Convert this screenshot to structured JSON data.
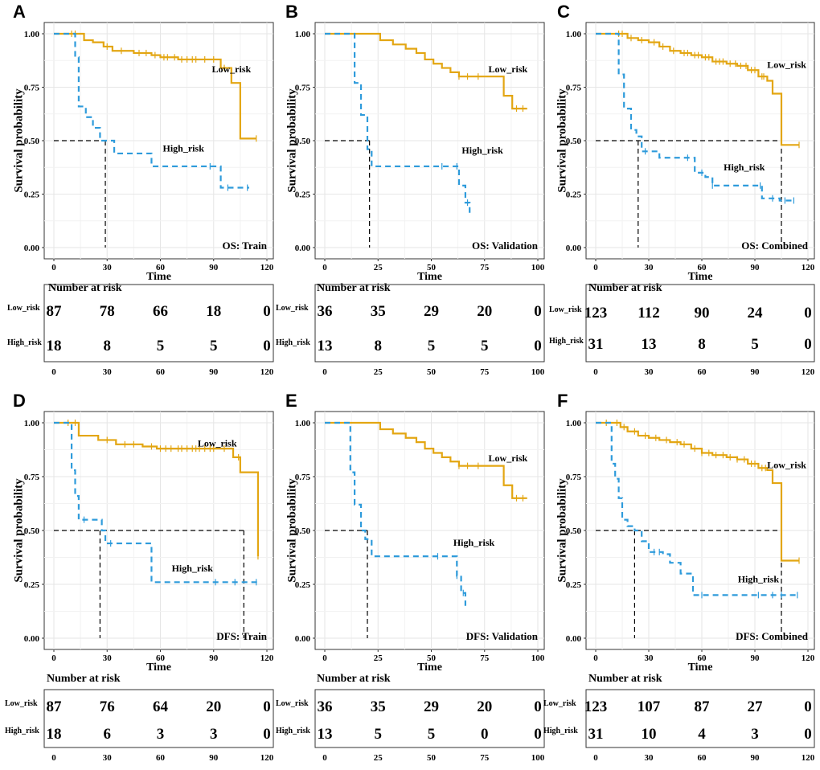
{
  "colors": {
    "low_risk": "#E3A612",
    "high_risk": "#2E9BDB",
    "median_line": "#000000",
    "grid": "#E6E6E6",
    "frame": "#333333"
  },
  "chart_data": [
    {
      "panel": "A",
      "type": "line",
      "annotation": "OS: Train",
      "xlabel": "Time",
      "ylabel": "Survival probability",
      "xlim": [
        0,
        120
      ],
      "ylim": [
        0,
        1
      ],
      "xticks": [
        "0",
        "30",
        "60",
        "90",
        "120"
      ],
      "yticks": [
        "0.00",
        "0.25",
        "0.50",
        "0.75",
        "1.00"
      ],
      "series": [
        {
          "name": "Low_risk",
          "label_at": [
            100,
            0.82
          ],
          "x": [
            0,
            14,
            17,
            22,
            28,
            33,
            45,
            55,
            60,
            70,
            88,
            94,
            100,
            105,
            114
          ],
          "y": [
            1,
            1,
            0.97,
            0.96,
            0.94,
            0.92,
            0.91,
            0.9,
            0.89,
            0.88,
            0.88,
            0.84,
            0.77,
            0.51,
            0.51
          ],
          "censor_x": [
            10,
            12,
            30,
            38,
            48,
            52,
            57,
            62,
            64,
            68,
            72,
            75,
            78,
            80,
            85,
            90,
            96,
            114
          ]
        },
        {
          "name": "High_risk",
          "label_at": [
            73,
            0.45
          ],
          "x": [
            0,
            10,
            12,
            14,
            18,
            22,
            26,
            30,
            34,
            43,
            55,
            91,
            94,
            110
          ],
          "y": [
            1,
            1,
            0.89,
            0.66,
            0.61,
            0.56,
            0.5,
            0.5,
            0.44,
            0.44,
            0.38,
            0.38,
            0.28,
            0.28
          ],
          "censor_x": [
            88,
            98,
            109
          ]
        }
      ],
      "median_x": [
        29
      ],
      "risk_table": {
        "title": "Number at risk",
        "ticks": [
          "0",
          "30",
          "60",
          "90",
          "120"
        ],
        "rows": [
          {
            "label": "Low_risk",
            "values": [
              "87",
              "78",
              "66",
              "18",
              "0"
            ]
          },
          {
            "label": "High_risk",
            "values": [
              "18",
              "8",
              "5",
              "5",
              "0"
            ]
          }
        ]
      }
    },
    {
      "panel": "B",
      "type": "line",
      "annotation": "OS: Validation",
      "xlabel": "Time",
      "ylabel": "Survival probability",
      "xlim": [
        0,
        100
      ],
      "ylim": [
        0,
        1
      ],
      "xticks": [
        "0",
        "25",
        "50",
        "75",
        "100"
      ],
      "yticks": [
        "0.00",
        "0.25",
        "0.50",
        "0.75",
        "1.00"
      ],
      "series": [
        {
          "name": "Low_risk",
          "label_at": [
            86,
            0.82
          ],
          "x": [
            0,
            20,
            26,
            32,
            38,
            43,
            47,
            51,
            55,
            59,
            63,
            70,
            76,
            84,
            88,
            95
          ],
          "y": [
            1,
            1,
            0.97,
            0.95,
            0.93,
            0.91,
            0.88,
            0.86,
            0.84,
            0.82,
            0.8,
            0.8,
            0.8,
            0.71,
            0.65,
            0.65
          ],
          "censor_x": [
            63,
            67,
            72,
            90,
            93
          ]
        },
        {
          "name": "High_risk",
          "label_at": [
            74,
            0.44
          ],
          "x": [
            0,
            11,
            14,
            17,
            20,
            22,
            24,
            58,
            63,
            66,
            68
          ],
          "y": [
            1,
            1,
            0.77,
            0.62,
            0.46,
            0.38,
            0.38,
            0.38,
            0.29,
            0.21,
            0.15
          ],
          "censor_x": [
            55,
            62,
            67
          ]
        }
      ],
      "median_x": [
        21
      ],
      "risk_table": {
        "title": "Number at risk",
        "ticks": [
          "0",
          "25",
          "50",
          "75",
          "100"
        ],
        "rows": [
          {
            "label": "Low_risk",
            "values": [
              "36",
              "35",
              "29",
              "20",
              "0"
            ]
          },
          {
            "label": "High_risk",
            "values": [
              "13",
              "8",
              "5",
              "5",
              "0"
            ]
          }
        ]
      }
    },
    {
      "panel": "C",
      "type": "line",
      "annotation": "OS: Combined",
      "xlabel": "Time",
      "ylabel": "Survival probability",
      "xlim": [
        0,
        120
      ],
      "ylim": [
        0,
        1
      ],
      "xticks": [
        "0",
        "30",
        "60",
        "90",
        "120"
      ],
      "yticks": [
        "0.00",
        "0.25",
        "0.50",
        "0.75",
        "1.00"
      ],
      "series": [
        {
          "name": "Low_risk",
          "label_at": [
            108,
            0.84
          ],
          "x": [
            0,
            12,
            18,
            24,
            30,
            36,
            42,
            48,
            54,
            60,
            66,
            74,
            80,
            86,
            92,
            97,
            100,
            105,
            115
          ],
          "y": [
            1,
            1,
            0.98,
            0.97,
            0.96,
            0.94,
            0.92,
            0.91,
            0.9,
            0.89,
            0.87,
            0.86,
            0.85,
            0.83,
            0.8,
            0.78,
            0.72,
            0.48,
            0.48
          ],
          "censor_x": [
            13,
            15,
            20,
            26,
            33,
            38,
            44,
            50,
            52,
            56,
            58,
            62,
            64,
            68,
            70,
            72,
            76,
            79,
            82,
            85,
            88,
            90,
            94,
            95,
            115
          ]
        },
        {
          "name": "High_risk",
          "label_at": [
            84,
            0.36
          ],
          "x": [
            0,
            10,
            13,
            16,
            20,
            23,
            26,
            30,
            36,
            50,
            56,
            62,
            66,
            91,
            94,
            104,
            112
          ],
          "y": [
            1,
            1,
            0.81,
            0.65,
            0.55,
            0.52,
            0.45,
            0.45,
            0.42,
            0.42,
            0.35,
            0.33,
            0.29,
            0.29,
            0.23,
            0.22,
            0.22
          ],
          "censor_x": [
            28,
            52,
            60,
            66,
            93,
            100,
            107,
            112
          ]
        }
      ],
      "median_x": [
        24,
        105
      ],
      "risk_table": {
        "title": "Number at risk",
        "ticks": [
          "0",
          "30",
          "60",
          "90",
          "120"
        ],
        "rows": [
          {
            "label": "Low_risk",
            "values": [
              "123",
              "112",
              "90",
              "24",
              "0"
            ]
          },
          {
            "label": "High_risk",
            "values": [
              "31",
              "13",
              "8",
              "5",
              "0"
            ]
          }
        ]
      }
    },
    {
      "panel": "D",
      "type": "line",
      "annotation": "DFS: Train",
      "xlabel": "Time",
      "ylabel": "Survival probability",
      "xlim": [
        0,
        120
      ],
      "ylim": [
        0,
        1
      ],
      "xticks": [
        "0",
        "30",
        "60",
        "90",
        "120"
      ],
      "yticks": [
        "0.00",
        "0.25",
        "0.50",
        "0.75",
        "1.00"
      ],
      "series": [
        {
          "name": "Low_risk",
          "label_at": [
            92,
            0.89
          ],
          "x": [
            0,
            10,
            14,
            25,
            35,
            50,
            58,
            95,
            101,
            105,
            115
          ],
          "y": [
            1,
            1,
            0.94,
            0.92,
            0.9,
            0.89,
            0.88,
            0.88,
            0.84,
            0.77,
            0.38
          ],
          "censor_x": [
            8,
            12,
            30,
            40,
            45,
            55,
            60,
            63,
            66,
            70,
            72,
            75,
            78,
            80,
            82,
            85,
            88,
            90,
            96,
            104,
            115
          ]
        },
        {
          "name": "High_risk",
          "label_at": [
            78,
            0.31
          ],
          "x": [
            0,
            8,
            10,
            12,
            14,
            25,
            27,
            29,
            33,
            52,
            55,
            106,
            115
          ],
          "y": [
            1,
            1,
            0.78,
            0.66,
            0.55,
            0.55,
            0.5,
            0.44,
            0.44,
            0.44,
            0.26,
            0.26,
            0.26
          ],
          "censor_x": [
            17,
            32,
            91,
            102,
            114
          ]
        }
      ],
      "median_x": [
        26,
        107
      ],
      "risk_table": {
        "title": "Number at risk",
        "ticks": [
          "0",
          "30",
          "60",
          "90",
          "120"
        ],
        "rows": [
          {
            "label": "Low_risk",
            "values": [
              "87",
              "76",
              "64",
              "20",
              "0"
            ]
          },
          {
            "label": "High_risk",
            "values": [
              "18",
              "6",
              "3",
              "3",
              "0"
            ]
          }
        ]
      }
    },
    {
      "panel": "E",
      "type": "line",
      "annotation": "DFS: Validation",
      "xlabel": "Time",
      "ylabel": "Survival probability",
      "xlim": [
        0,
        100
      ],
      "ylim": [
        0,
        1
      ],
      "xticks": [
        "0",
        "25",
        "50",
        "75",
        "100"
      ],
      "yticks": [
        "0.00",
        "0.25",
        "0.50",
        "0.75",
        "1.00"
      ],
      "series": [
        {
          "name": "Low_risk",
          "label_at": [
            86,
            0.82
          ],
          "x": [
            0,
            20,
            26,
            32,
            38,
            43,
            47,
            51,
            55,
            59,
            63,
            70,
            76,
            84,
            88,
            95
          ],
          "y": [
            1,
            1,
            0.97,
            0.95,
            0.93,
            0.91,
            0.88,
            0.86,
            0.84,
            0.82,
            0.8,
            0.8,
            0.8,
            0.71,
            0.65,
            0.65
          ],
          "censor_x": [
            63,
            67,
            72,
            90,
            93
          ]
        },
        {
          "name": "High_risk",
          "label_at": [
            70,
            0.43
          ],
          "x": [
            0,
            10,
            12,
            14,
            17,
            19,
            22,
            58,
            62,
            64,
            66
          ],
          "y": [
            1,
            1,
            0.77,
            0.62,
            0.5,
            0.46,
            0.38,
            0.38,
            0.29,
            0.21,
            0.15
          ],
          "censor_x": [
            53,
            62,
            65
          ]
        }
      ],
      "median_x": [
        20
      ],
      "risk_table": {
        "title": "Number at risk",
        "ticks": [
          "0",
          "25",
          "50",
          "75",
          "100"
        ],
        "rows": [
          {
            "label": "Low_risk",
            "values": [
              "36",
              "35",
              "29",
              "20",
              "0"
            ]
          },
          {
            "label": "High_risk",
            "values": [
              "13",
              "5",
              "5",
              "0",
              "0"
            ]
          }
        ]
      }
    },
    {
      "panel": "F",
      "type": "line",
      "annotation": "DFS: Combined",
      "xlabel": "Time",
      "ylabel": "Survival probability",
      "xlim": [
        0,
        120
      ],
      "ylim": [
        0,
        1
      ],
      "xticks": [
        "0",
        "30",
        "60",
        "90",
        "120"
      ],
      "yticks": [
        "0.00",
        "0.25",
        "0.50",
        "0.75",
        "1.00"
      ],
      "series": [
        {
          "name": "Low_risk",
          "label_at": [
            108,
            0.79
          ],
          "x": [
            0,
            10,
            14,
            18,
            24,
            30,
            36,
            42,
            48,
            54,
            60,
            66,
            74,
            80,
            86,
            92,
            97,
            100,
            105,
            115
          ],
          "y": [
            1,
            1,
            0.98,
            0.96,
            0.94,
            0.93,
            0.92,
            0.91,
            0.9,
            0.88,
            0.86,
            0.85,
            0.84,
            0.83,
            0.81,
            0.79,
            0.78,
            0.72,
            0.36,
            0.36
          ],
          "censor_x": [
            6,
            12,
            16,
            22,
            28,
            34,
            40,
            46,
            50,
            56,
            60,
            64,
            68,
            72,
            76,
            80,
            84,
            88,
            90,
            94,
            96,
            115
          ]
        },
        {
          "name": "High_risk",
          "label_at": [
            92,
            0.26
          ],
          "x": [
            0,
            7,
            9,
            11,
            13,
            15,
            18,
            22,
            26,
            30,
            38,
            42,
            48,
            55,
            60,
            104,
            115
          ],
          "y": [
            1,
            1,
            0.81,
            0.74,
            0.65,
            0.55,
            0.52,
            0.5,
            0.45,
            0.4,
            0.39,
            0.35,
            0.3,
            0.2,
            0.2,
            0.2,
            0.2
          ],
          "censor_x": [
            33,
            36,
            60,
            92,
            100,
            105,
            114
          ]
        }
      ],
      "median_x": [
        22,
        105
      ],
      "risk_table": {
        "title": "Number at risk",
        "ticks": [
          "0",
          "30",
          "60",
          "90",
          "120"
        ],
        "rows": [
          {
            "label": "Low_risk",
            "values": [
              "123",
              "107",
              "87",
              "27",
              "0"
            ]
          },
          {
            "label": "High_risk",
            "values": [
              "31",
              "10",
              "4",
              "3",
              "0"
            ]
          }
        ]
      }
    }
  ]
}
